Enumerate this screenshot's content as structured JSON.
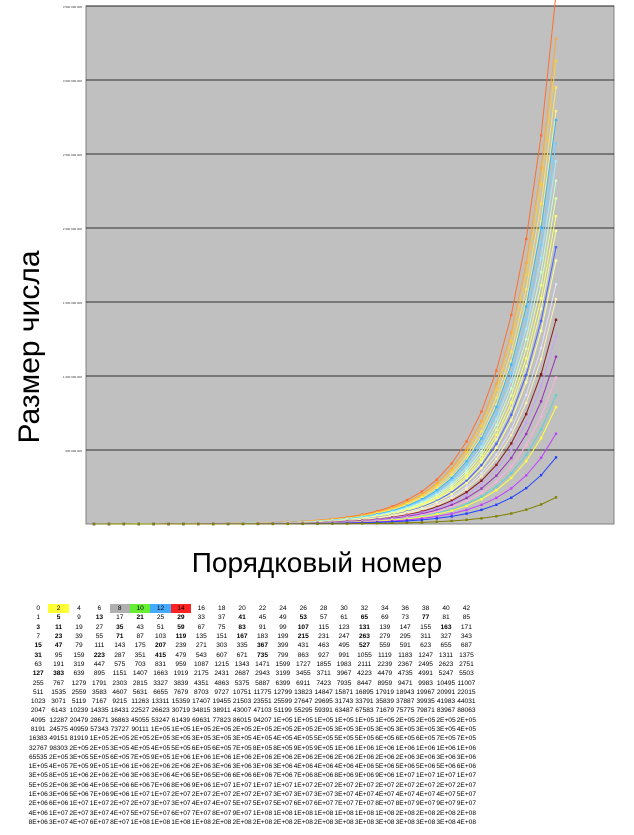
{
  "chart_data": {
    "type": "line",
    "xlabel": "Порядковый номер",
    "ylabel": "Размер числа",
    "grid": true,
    "background": "#c0c0c0",
    "y_ticks": [
      "3 500 000 000",
      "3 000 000 000",
      "2 500 000 000",
      "2 000 000 000",
      "1 500 000 000",
      "1 000 000 000",
      "500 000 000"
    ],
    "ylim": [
      0,
      3500000000
    ],
    "n_points": 32,
    "series_colors": [
      "#ff6f2c",
      "#ffa63a",
      "#ffcc33",
      "#ffe45a",
      "#fff27a",
      "#33b6ff",
      "#6fd0ff",
      "#a8e8ff",
      "#c8ffd0",
      "#e8ffa0",
      "#ffff66",
      "#f0ff99",
      "#4a64ff",
      "#ffff99",
      "#e0e0ff",
      "#fff0b0",
      "#8b1a1a",
      "#c7a0ff",
      "#9b30c0",
      "#ffb0e0",
      "#5fd0d0",
      "#ffff40",
      "#c040ff",
      "#2040ff",
      "#808000"
    ],
    "series_final_values": [
      3580000000,
      3280000000,
      3130000000,
      2950000000,
      2790000000,
      2730000000,
      2570000000,
      2450000000,
      2320000000,
      2200000000,
      2080000000,
      1980000000,
      1870000000,
      1780000000,
      1620000000,
      1520000000,
      1380000000,
      1270000000,
      1130000000,
      990000000,
      870000000,
      790000000,
      610000000,
      450000000,
      180000000
    ]
  },
  "table": {
    "header": [
      "0",
      "2",
      "4",
      "6",
      "8",
      "10",
      "12",
      "14",
      "16",
      "18",
      "20",
      "22",
      "24",
      "26",
      "28",
      "30",
      "32",
      "34",
      "36",
      "38",
      "40",
      "42"
    ],
    "header_colors": [
      "",
      "#ffff33",
      "",
      "",
      "#b0b0b0",
      "#66ee33",
      "#44aaff",
      "#ff2222",
      "",
      "",
      "",
      "",
      "",
      "",
      "",
      "",
      "",
      "",
      "",
      "",
      "",
      ""
    ],
    "rows": [
      [
        "1",
        "5",
        "9",
        "13",
        "17",
        "21",
        "25",
        "29",
        "33",
        "37",
        "41",
        "45",
        "49",
        "53",
        "57",
        "61",
        "65",
        "69",
        "73",
        "77",
        "81",
        "85"
      ],
      [
        "3",
        "11",
        "19",
        "27",
        "35",
        "43",
        "51",
        "59",
        "67",
        "75",
        "83",
        "91",
        "99",
        "107",
        "115",
        "123",
        "131",
        "139",
        "147",
        "155",
        "163",
        "171"
      ],
      [
        "7",
        "23",
        "39",
        "55",
        "71",
        "87",
        "103",
        "119",
        "135",
        "151",
        "167",
        "183",
        "199",
        "215",
        "231",
        "247",
        "263",
        "279",
        "295",
        "311",
        "327",
        "343"
      ],
      [
        "15",
        "47",
        "79",
        "111",
        "143",
        "175",
        "207",
        "239",
        "271",
        "303",
        "335",
        "367",
        "399",
        "431",
        "463",
        "495",
        "527",
        "559",
        "591",
        "623",
        "655",
        "687"
      ],
      [
        "31",
        "95",
        "159",
        "223",
        "287",
        "351",
        "415",
        "479",
        "543",
        "607",
        "671",
        "735",
        "799",
        "863",
        "927",
        "991",
        "1055",
        "1119",
        "1183",
        "1247",
        "1311",
        "1375"
      ],
      [
        "63",
        "191",
        "319",
        "447",
        "575",
        "703",
        "831",
        "959",
        "1087",
        "1215",
        "1343",
        "1471",
        "1599",
        "1727",
        "1855",
        "1983",
        "2111",
        "2239",
        "2367",
        "2495",
        "2623",
        "2751"
      ],
      [
        "127",
        "383",
        "639",
        "895",
        "1151",
        "1407",
        "1663",
        "1919",
        "2175",
        "2431",
        "2687",
        "2943",
        "3199",
        "3455",
        "3711",
        "3967",
        "4223",
        "4479",
        "4735",
        "4991",
        "5247",
        "5503"
      ],
      [
        "255",
        "767",
        "1279",
        "1791",
        "2303",
        "2815",
        "3327",
        "3839",
        "4351",
        "4863",
        "5375",
        "5887",
        "6399",
        "6911",
        "7423",
        "7935",
        "8447",
        "8959",
        "9471",
        "9983",
        "10495",
        "11007"
      ],
      [
        "511",
        "1535",
        "2559",
        "3583",
        "4607",
        "5631",
        "6655",
        "7679",
        "8703",
        "9727",
        "10751",
        "11775",
        "12799",
        "13823",
        "14847",
        "15871",
        "16895",
        "17919",
        "18943",
        "19967",
        "20991",
        "22015"
      ],
      [
        "1023",
        "3071",
        "5119",
        "7167",
        "9215",
        "11263",
        "13311",
        "15359",
        "17407",
        "19455",
        "21503",
        "23551",
        "25599",
        "27647",
        "29695",
        "31743",
        "33791",
        "35839",
        "37887",
        "39935",
        "41983",
        "44031"
      ],
      [
        "2047",
        "6143",
        "10239",
        "14335",
        "18431",
        "22527",
        "26623",
        "30719",
        "34815",
        "38911",
        "43007",
        "47103",
        "51199",
        "55295",
        "59391",
        "63487",
        "67583",
        "71679",
        "75775",
        "79871",
        "83967",
        "88063"
      ],
      [
        "4095",
        "12287",
        "20479",
        "28671",
        "36863",
        "45055",
        "53247",
        "61439",
        "69631",
        "77823",
        "86015",
        "94207",
        "1E+05",
        "1E+05",
        "1E+05",
        "1E+05",
        "1E+05",
        "1E+05",
        "2E+05",
        "2E+05",
        "2E+05",
        "2E+05"
      ],
      [
        "8191",
        "24575",
        "40959",
        "57343",
        "73727",
        "90111",
        "1E+05",
        "1E+05",
        "1E+05",
        "2E+05",
        "2E+05",
        "2E+05",
        "2E+05",
        "2E+05",
        "2E+05",
        "3E+05",
        "3E+05",
        "3E+05",
        "3E+05",
        "3E+05",
        "3E+05",
        "4E+05"
      ],
      [
        "16383",
        "49151",
        "81919",
        "1E+05",
        "2E+05",
        "2E+05",
        "2E+05",
        "3E+05",
        "3E+05",
        "3E+05",
        "3E+05",
        "4E+05",
        "4E+05",
        "4E+05",
        "5E+05",
        "5E+05",
        "5E+05",
        "6E+05",
        "6E+05",
        "6E+05",
        "7E+05",
        "7E+05"
      ],
      [
        "32767",
        "98303",
        "2E+05",
        "2E+05",
        "3E+05",
        "4E+05",
        "4E+05",
        "5E+05",
        "6E+05",
        "6E+05",
        "7E+05",
        "8E+05",
        "8E+05",
        "9E+05",
        "9E+05",
        "1E+06",
        "1E+06",
        "1E+06",
        "1E+06",
        "1E+06",
        "1E+06",
        "1E+06"
      ],
      [
        "65535",
        "2E+05",
        "3E+05",
        "5E+05",
        "6E+05",
        "7E+05",
        "9E+05",
        "1E+06",
        "1E+06",
        "1E+06",
        "1E+06",
        "2E+06",
        "2E+06",
        "2E+06",
        "2E+06",
        "2E+06",
        "2E+06",
        "2E+06",
        "2E+06",
        "3E+06",
        "3E+06",
        "3E+06"
      ],
      [
        "1E+05",
        "4E+05",
        "7E+05",
        "9E+05",
        "1E+06",
        "1E+06",
        "2E+06",
        "2E+06",
        "2E+06",
        "3E+06",
        "3E+06",
        "3E+06",
        "3E+06",
        "4E+06",
        "4E+06",
        "4E+06",
        "4E+06",
        "5E+06",
        "5E+06",
        "5E+06",
        "5E+06",
        "6E+06"
      ],
      [
        "3E+05",
        "8E+05",
        "1E+06",
        "2E+06",
        "2E+06",
        "3E+06",
        "3E+06",
        "4E+06",
        "5E+06",
        "5E+06",
        "6E+06",
        "6E+06",
        "7E+06",
        "7E+06",
        "8E+06",
        "8E+06",
        "9E+06",
        "9E+06",
        "1E+07",
        "1E+07",
        "1E+07",
        "1E+07"
      ],
      [
        "5E+05",
        "2E+06",
        "3E+06",
        "4E+06",
        "5E+06",
        "6E+06",
        "7E+06",
        "8E+06",
        "9E+06",
        "1E+07",
        "1E+07",
        "1E+07",
        "1E+07",
        "1E+07",
        "2E+07",
        "2E+07",
        "2E+07",
        "2E+07",
        "2E+07",
        "2E+07",
        "2E+07",
        "2E+07"
      ],
      [
        "1E+06",
        "3E+06",
        "5E+06",
        "7E+06",
        "9E+06",
        "1E+07",
        "1E+07",
        "2E+07",
        "2E+07",
        "2E+07",
        "2E+07",
        "2E+07",
        "3E+07",
        "3E+07",
        "3E+07",
        "3E+07",
        "4E+07",
        "4E+07",
        "4E+07",
        "4E+07",
        "4E+07",
        "5E+07"
      ],
      [
        "2E+06",
        "6E+06",
        "1E+07",
        "1E+07",
        "2E+07",
        "2E+07",
        "3E+07",
        "3E+07",
        "4E+07",
        "4E+07",
        "5E+07",
        "5E+07",
        "5E+07",
        "6E+07",
        "6E+07",
        "7E+07",
        "7E+07",
        "8E+07",
        "8E+07",
        "9E+07",
        "9E+07",
        "9E+07"
      ],
      [
        "4E+06",
        "1E+07",
        "2E+07",
        "3E+07",
        "4E+07",
        "5E+07",
        "5E+07",
        "6E+07",
        "7E+07",
        "8E+07",
        "9E+07",
        "1E+08",
        "1E+08",
        "1E+08",
        "1E+08",
        "1E+08",
        "1E+08",
        "1E+08",
        "2E+08",
        "2E+08",
        "2E+08",
        "2E+08"
      ],
      [
        "8E+06",
        "3E+07",
        "4E+07",
        "6E+07",
        "8E+07",
        "1E+08",
        "1E+08",
        "1E+08",
        "1E+08",
        "2E+08",
        "2E+08",
        "2E+08",
        "2E+08",
        "2E+08",
        "2E+08",
        "3E+08",
        "3E+08",
        "3E+08",
        "3E+08",
        "3E+08",
        "3E+08",
        "4E+08"
      ]
    ],
    "bold_cells": [
      [
        0,
        1
      ],
      [
        0,
        3
      ],
      [
        0,
        5
      ],
      [
        0,
        7
      ],
      [
        0,
        10
      ],
      [
        0,
        13
      ],
      [
        0,
        16
      ],
      [
        0,
        19
      ],
      [
        1,
        0
      ],
      [
        1,
        1
      ],
      [
        1,
        4
      ],
      [
        1,
        7
      ],
      [
        1,
        10
      ],
      [
        1,
        13
      ],
      [
        1,
        16
      ],
      [
        1,
        20
      ],
      [
        2,
        1
      ],
      [
        2,
        4
      ],
      [
        2,
        7
      ],
      [
        2,
        10
      ],
      [
        2,
        13
      ],
      [
        2,
        16
      ],
      [
        3,
        0
      ],
      [
        3,
        1
      ],
      [
        3,
        6
      ],
      [
        3,
        11
      ],
      [
        3,
        16
      ],
      [
        4,
        0
      ],
      [
        4,
        3
      ],
      [
        4,
        11
      ],
      [
        6,
        0
      ],
      [
        6,
        1
      ],
      [
        4,
        6
      ]
    ]
  }
}
